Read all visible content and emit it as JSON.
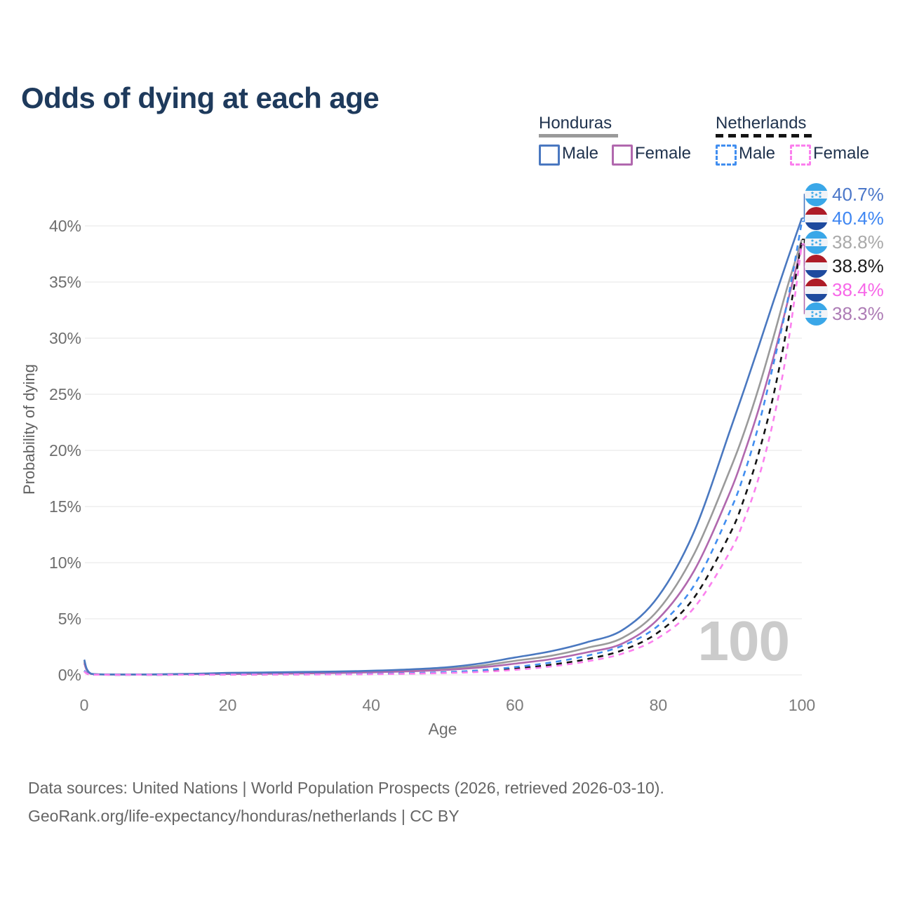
{
  "title": "Odds of dying at each age",
  "legend": {
    "groups": [
      {
        "label": "Honduras",
        "line_style": "solid",
        "underline_color": "#9a9a9a",
        "items": [
          {
            "label": "Male",
            "color": "#4a78c0",
            "dashed": false
          },
          {
            "label": "Female",
            "color": "#b168ae",
            "dashed": false
          }
        ]
      },
      {
        "label": "Netherlands",
        "line_style": "dashed",
        "underline_color": "#141414",
        "items": [
          {
            "label": "Male",
            "color": "#418ef0",
            "dashed": true
          },
          {
            "label": "Female",
            "color": "#fb80ee",
            "dashed": true
          }
        ]
      }
    ]
  },
  "axes": {
    "y_label": "Probability of dying",
    "x_label": "Age"
  },
  "watermark": "100",
  "footer": {
    "line1": "Data sources: United Nations | World Population Prospects (2026, retrieved 2026-03-10).",
    "line2": "GeoRank.org/life-expectancy/honduras/netherlands | CC BY"
  },
  "end_labels": [
    {
      "value": "40.7%",
      "flag": "honduras",
      "series": "Honduras Male",
      "text_color": "#4b77c9"
    },
    {
      "value": "40.4%",
      "flag": "netherlands",
      "series": "Netherlands Male",
      "text_color": "#3e86f2"
    },
    {
      "value": "38.8%",
      "flag": "honduras",
      "series": "Honduras Both sexes",
      "text_color": "#a9a9a9"
    },
    {
      "value": "38.8%",
      "flag": "netherlands",
      "series": "Netherlands Both sexes",
      "text_color": "#1c1c1c"
    },
    {
      "value": "38.4%",
      "flag": "netherlands",
      "series": "Netherlands Female",
      "text_color": "#f767e8"
    },
    {
      "value": "38.3%",
      "flag": "honduras",
      "series": "Honduras Female",
      "text_color": "#ad7cb5"
    }
  ],
  "chart_data": {
    "type": "line",
    "title": "Odds of dying at each age",
    "xlabel": "Age",
    "ylabel": "Probability of dying",
    "unit": "%",
    "xlim": [
      0,
      100
    ],
    "ylim": [
      0,
      43
    ],
    "grid": "horizontal",
    "legend_position": "top-right",
    "x_ticks": [
      {
        "v": 0,
        "label": "0"
      },
      {
        "v": 20,
        "label": "20"
      },
      {
        "v": 40,
        "label": "40"
      },
      {
        "v": 60,
        "label": "60"
      },
      {
        "v": 80,
        "label": "80"
      },
      {
        "v": 100,
        "label": "100"
      }
    ],
    "y_ticks": [
      {
        "v": 0,
        "label": "0%"
      },
      {
        "v": 5,
        "label": "5%"
      },
      {
        "v": 10,
        "label": "10%"
      },
      {
        "v": 15,
        "label": "15%"
      },
      {
        "v": 20,
        "label": "20%"
      },
      {
        "v": 25,
        "label": "25%"
      },
      {
        "v": 30,
        "label": "30%"
      },
      {
        "v": 35,
        "label": "35%"
      },
      {
        "v": 40,
        "label": "40%"
      }
    ],
    "x": [
      0,
      1,
      5,
      10,
      15,
      20,
      25,
      30,
      35,
      40,
      45,
      50,
      55,
      60,
      65,
      70,
      75,
      80,
      85,
      90,
      92,
      94,
      96,
      98,
      100
    ],
    "series": [
      {
        "name": "Honduras Both sexes",
        "country": "Honduras",
        "sex": "Both",
        "style": "solid",
        "color": "#9a9a9a",
        "end_value_pct": 38.8,
        "values": [
          1.2,
          0.09,
          0.035,
          0.04,
          0.08,
          0.13,
          0.16,
          0.19,
          0.23,
          0.29,
          0.38,
          0.52,
          0.8,
          1.25,
          1.7,
          2.4,
          3.3,
          5.8,
          10.8,
          18.3,
          21.7,
          25.6,
          30.0,
          34.6,
          38.8
        ]
      },
      {
        "name": "Honduras Female",
        "country": "Honduras",
        "sex": "Female",
        "style": "solid",
        "color": "#b168ae",
        "end_value_pct": 38.3,
        "values": [
          1.05,
          0.08,
          0.03,
          0.035,
          0.06,
          0.08,
          0.1,
          0.13,
          0.17,
          0.23,
          0.31,
          0.43,
          0.65,
          1.0,
          1.4,
          2.0,
          2.8,
          5.0,
          9.3,
          16.3,
          19.8,
          23.7,
          28.2,
          33.2,
          38.3
        ]
      },
      {
        "name": "Honduras Male",
        "country": "Honduras",
        "sex": "Male",
        "style": "solid",
        "color": "#4a78c0",
        "end_value_pct": 40.7,
        "values": [
          1.35,
          0.1,
          0.04,
          0.05,
          0.1,
          0.18,
          0.22,
          0.26,
          0.3,
          0.37,
          0.48,
          0.65,
          1.0,
          1.55,
          2.1,
          2.9,
          4.0,
          7.0,
          12.8,
          21.8,
          25.5,
          29.3,
          33.2,
          37.0,
          40.7
        ]
      },
      {
        "name": "Netherlands Both sexes",
        "country": "Netherlands",
        "sex": "Both",
        "style": "dashed",
        "color": "#141414",
        "end_value_pct": 38.8,
        "values": [
          0.33,
          0.02,
          0.007,
          0.008,
          0.02,
          0.035,
          0.04,
          0.045,
          0.055,
          0.08,
          0.12,
          0.19,
          0.31,
          0.55,
          0.9,
          1.4,
          2.2,
          3.8,
          6.9,
          12.6,
          15.8,
          19.8,
          24.8,
          31.2,
          38.8
        ]
      },
      {
        "name": "Netherlands Male",
        "country": "Netherlands",
        "sex": "Male",
        "style": "dashed",
        "color": "#418ef0",
        "end_value_pct": 40.4,
        "values": [
          0.38,
          0.025,
          0.008,
          0.009,
          0.025,
          0.045,
          0.05,
          0.055,
          0.07,
          0.1,
          0.15,
          0.24,
          0.4,
          0.7,
          1.1,
          1.7,
          2.6,
          4.4,
          8.0,
          14.6,
          18.0,
          22.3,
          27.6,
          33.3,
          40.4
        ]
      },
      {
        "name": "Netherlands Female",
        "country": "Netherlands",
        "sex": "Female",
        "style": "dashed",
        "color": "#fb80ee",
        "end_value_pct": 38.4,
        "values": [
          0.3,
          0.018,
          0.006,
          0.007,
          0.015,
          0.025,
          0.03,
          0.035,
          0.045,
          0.065,
          0.1,
          0.16,
          0.26,
          0.45,
          0.75,
          1.2,
          1.9,
          3.3,
          6.0,
          11.0,
          13.9,
          17.6,
          22.6,
          29.2,
          38.4
        ]
      }
    ]
  }
}
